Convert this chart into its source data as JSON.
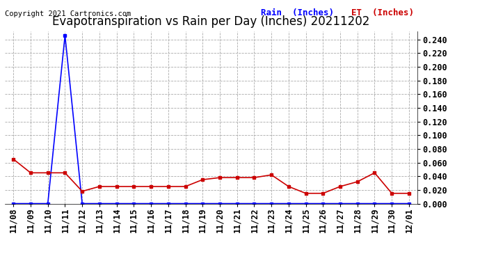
{
  "title": "Evapotranspiration vs Rain per Day (Inches) 20211202",
  "copyright": "Copyright 2021 Cartronics.com",
  "legend_rain": "Rain  (Inches)",
  "legend_et": "ET  (Inches)",
  "dates": [
    "11/08",
    "11/09",
    "11/10",
    "11/11",
    "11/12",
    "11/13",
    "11/14",
    "11/15",
    "11/16",
    "11/17",
    "11/18",
    "11/19",
    "11/20",
    "11/21",
    "11/22",
    "11/23",
    "11/24",
    "11/25",
    "11/26",
    "11/27",
    "11/28",
    "11/29",
    "11/30",
    "12/01"
  ],
  "rain": [
    0.0,
    0.0,
    0.0,
    0.246,
    0.0,
    0.0,
    0.0,
    0.0,
    0.0,
    0.0,
    0.0,
    0.0,
    0.0,
    0.0,
    0.0,
    0.0,
    0.0,
    0.0,
    0.0,
    0.0,
    0.0,
    0.0,
    0.0,
    0.0
  ],
  "et": [
    0.065,
    0.045,
    0.045,
    0.045,
    0.018,
    0.025,
    0.025,
    0.025,
    0.025,
    0.025,
    0.025,
    0.035,
    0.038,
    0.038,
    0.038,
    0.042,
    0.025,
    0.015,
    0.015,
    0.025,
    0.032,
    0.045,
    0.015,
    0.015
  ],
  "rain_color": "#0000ff",
  "et_color": "#cc0000",
  "background_color": "#ffffff",
  "grid_color": "#aaaaaa",
  "ylim": [
    0.0,
    0.252
  ],
  "yticks": [
    0.0,
    0.02,
    0.04,
    0.06,
    0.08,
    0.1,
    0.12,
    0.14,
    0.16,
    0.18,
    0.2,
    0.22,
    0.24
  ],
  "title_fontsize": 12,
  "legend_fontsize": 9,
  "tick_fontsize": 8.5,
  "copyright_fontsize": 7.5,
  "marker_size": 3
}
